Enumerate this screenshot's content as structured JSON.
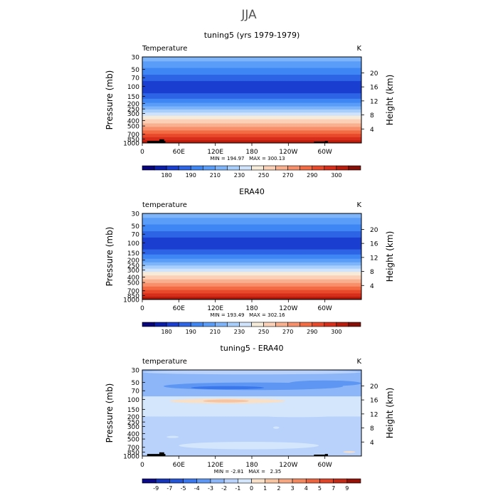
{
  "figure": {
    "title": "JJA"
  },
  "colors": {
    "abs_scale": [
      "#08047a",
      "#0a1ea8",
      "#1a3fd0",
      "#2d64e6",
      "#3f86f5",
      "#5a9df8",
      "#7eb4fa",
      "#a8cffc",
      "#cfe3fd",
      "#f6ead9",
      "#fbd0b6",
      "#f9b08f",
      "#f78f6a",
      "#f26b43",
      "#e8492a",
      "#d62e1a",
      "#b81c0c",
      "#861008"
    ],
    "diff_scale": [
      "#0b0a86",
      "#1535b6",
      "#2655d4",
      "#3a76ec",
      "#5d97f3",
      "#8cb6f8",
      "#b8d2fb",
      "#d3e6fb",
      "#f8dfc8",
      "#f7c4a2",
      "#f6a681",
      "#f2885f",
      "#ea6440",
      "#dd4529",
      "#c22a18",
      "#931106"
    ],
    "land": "#000000"
  },
  "chart_data": [
    {
      "type": "heatmap",
      "id": "panel-model",
      "title": "tuning5 (yrs 1979-1979)",
      "left_label": "Temperature",
      "right_label": "K",
      "ylabel": "Pressure (mb)",
      "y2label": "Height (km)",
      "x_ticks": [
        "0",
        "60E",
        "120E",
        "180",
        "120W",
        "60W"
      ],
      "x_tick_values": [
        0,
        60,
        120,
        180,
        240,
        300
      ],
      "xlim": [
        0,
        360
      ],
      "y_ticks": [
        "30",
        "50",
        "70",
        "100",
        "150",
        "200",
        "250",
        "300",
        "400",
        "500",
        "700",
        "850",
        "1000"
      ],
      "y_tick_values": [
        30,
        50,
        70,
        100,
        150,
        200,
        250,
        300,
        400,
        500,
        700,
        850,
        1000
      ],
      "ylim": [
        1000,
        30
      ],
      "y_scale": "log",
      "y2_ticks": [
        "20",
        "16",
        "12",
        "8",
        "4"
      ],
      "y2_tick_values": [
        20,
        16,
        12,
        8,
        4
      ],
      "stats": "MIN = 194.97   MAX = 300.13",
      "colorbar_labels": [
        "180",
        "190",
        "210",
        "230",
        "250",
        "270",
        "290",
        "300"
      ],
      "colorbar_label_after_box": [
        1,
        3,
        5,
        7,
        9,
        11,
        13,
        15
      ],
      "zonal_bands": [
        {
          "p_top": 30,
          "p_bot": 36,
          "color_index": 6
        },
        {
          "p_top": 36,
          "p_bot": 47,
          "color_index": 5
        },
        {
          "p_top": 47,
          "p_bot": 62,
          "color_index": 4
        },
        {
          "p_top": 62,
          "p_bot": 80,
          "color_index": 3
        },
        {
          "p_top": 80,
          "p_bot": 132,
          "color_index": 2
        },
        {
          "p_top": 132,
          "p_bot": 165,
          "color_index": 3
        },
        {
          "p_top": 165,
          "p_bot": 195,
          "color_index": 4
        },
        {
          "p_top": 195,
          "p_bot": 225,
          "color_index": 5
        },
        {
          "p_top": 225,
          "p_bot": 255,
          "color_index": 6
        },
        {
          "p_top": 255,
          "p_bot": 290,
          "color_index": 7
        },
        {
          "p_top": 290,
          "p_bot": 330,
          "color_index": 8
        },
        {
          "p_top": 330,
          "p_bot": 380,
          "color_index": 9
        },
        {
          "p_top": 380,
          "p_bot": 450,
          "color_index": 10
        },
        {
          "p_top": 450,
          "p_bot": 520,
          "color_index": 11
        },
        {
          "p_top": 520,
          "p_bot": 600,
          "color_index": 12
        },
        {
          "p_top": 600,
          "p_bot": 690,
          "color_index": 13
        },
        {
          "p_top": 690,
          "p_bot": 790,
          "color_index": 14
        },
        {
          "p_top": 790,
          "p_bot": 900,
          "color_index": 15
        },
        {
          "p_top": 900,
          "p_bot": 1000,
          "color_index": 16
        }
      ],
      "anomaly_blobs": [],
      "land": [
        {
          "lon0": 8,
          "lon1": 38,
          "p_top": 920
        },
        {
          "lon0": 28,
          "lon1": 36,
          "p_top": 860
        },
        {
          "lon0": 282,
          "lon1": 300,
          "p_top": 945
        },
        {
          "lon0": 300,
          "lon1": 305,
          "p_top": 920
        }
      ]
    },
    {
      "type": "heatmap",
      "id": "panel-obs",
      "title": "ERA40",
      "left_label": "temperature",
      "right_label": "K",
      "ylabel": "Pressure (mb)",
      "y2label": "Height (km)",
      "x_ticks": [
        "0",
        "60E",
        "120E",
        "180",
        "120W",
        "60W"
      ],
      "x_tick_values": [
        0,
        60,
        120,
        180,
        240,
        300
      ],
      "xlim": [
        0,
        360
      ],
      "y_ticks": [
        "30",
        "50",
        "70",
        "100",
        "150",
        "200",
        "250",
        "300",
        "400",
        "500",
        "700",
        "850",
        "1000"
      ],
      "y_tick_values": [
        30,
        50,
        70,
        100,
        150,
        200,
        250,
        300,
        400,
        500,
        700,
        850,
        1000
      ],
      "ylim": [
        1000,
        30
      ],
      "y_scale": "log",
      "y2_ticks": [
        "20",
        "16",
        "12",
        "8",
        "4"
      ],
      "y2_tick_values": [
        20,
        16,
        12,
        8,
        4
      ],
      "stats": "MIN = 193.49   MAX = 302.16",
      "colorbar_labels": [
        "180",
        "190",
        "210",
        "230",
        "250",
        "270",
        "290",
        "300"
      ],
      "colorbar_label_after_box": [
        1,
        3,
        5,
        7,
        9,
        11,
        13,
        15
      ],
      "zonal_bands": [
        {
          "p_top": 30,
          "p_bot": 36,
          "color_index": 6
        },
        {
          "p_top": 36,
          "p_bot": 47,
          "color_index": 5
        },
        {
          "p_top": 47,
          "p_bot": 62,
          "color_index": 4
        },
        {
          "p_top": 62,
          "p_bot": 80,
          "color_index": 3
        },
        {
          "p_top": 80,
          "p_bot": 130,
          "color_index": 2
        },
        {
          "p_top": 130,
          "p_bot": 160,
          "color_index": 3
        },
        {
          "p_top": 160,
          "p_bot": 190,
          "color_index": 4
        },
        {
          "p_top": 190,
          "p_bot": 220,
          "color_index": 5
        },
        {
          "p_top": 220,
          "p_bot": 250,
          "color_index": 6
        },
        {
          "p_top": 250,
          "p_bot": 285,
          "color_index": 7
        },
        {
          "p_top": 285,
          "p_bot": 325,
          "color_index": 8
        },
        {
          "p_top": 325,
          "p_bot": 375,
          "color_index": 9
        },
        {
          "p_top": 375,
          "p_bot": 440,
          "color_index": 10
        },
        {
          "p_top": 440,
          "p_bot": 510,
          "color_index": 11
        },
        {
          "p_top": 510,
          "p_bot": 590,
          "color_index": 12
        },
        {
          "p_top": 590,
          "p_bot": 680,
          "color_index": 13
        },
        {
          "p_top": 680,
          "p_bot": 780,
          "color_index": 14
        },
        {
          "p_top": 780,
          "p_bot": 890,
          "color_index": 15
        },
        {
          "p_top": 890,
          "p_bot": 960,
          "color_index": 16
        },
        {
          "p_top": 960,
          "p_bot": 1000,
          "color_index": 17
        }
      ],
      "anomaly_blobs": [],
      "land": []
    },
    {
      "type": "heatmap",
      "id": "panel-diff",
      "title": "tuning5 - ERA40",
      "left_label": "temperature",
      "right_label": "K",
      "ylabel": "Pressure (mb)",
      "y2label": "Height (km)",
      "x_ticks": [
        "0",
        "60E",
        "120E",
        "180",
        "120W",
        "60W"
      ],
      "x_tick_values": [
        0,
        60,
        120,
        180,
        240,
        300
      ],
      "xlim": [
        0,
        360
      ],
      "y_ticks": [
        "30",
        "50",
        "70",
        "100",
        "150",
        "200",
        "250",
        "300",
        "400",
        "500",
        "700",
        "850",
        "1000"
      ],
      "y_tick_values": [
        30,
        50,
        70,
        100,
        150,
        200,
        250,
        300,
        400,
        500,
        700,
        850,
        1000
      ],
      "ylim": [
        1000,
        30
      ],
      "y_scale": "log",
      "y2_ticks": [
        "20",
        "16",
        "12",
        "8",
        "4"
      ],
      "y2_tick_values": [
        20,
        16,
        12,
        8,
        4
      ],
      "stats": "MIN = -2.81   MAX =   2.35",
      "colorbar_labels": [
        "-9",
        "-7",
        "-5",
        "-4",
        "-3",
        "-2",
        "-1",
        "0",
        "1",
        "2",
        "3",
        "4",
        "5",
        "7",
        "9"
      ],
      "colorbar_label_after_box": [
        0,
        1,
        2,
        3,
        4,
        5,
        6,
        7,
        8,
        9,
        10,
        11,
        12,
        13,
        14
      ],
      "zonal_bands": [
        {
          "p_top": 30,
          "p_bot": 38,
          "color_index": 5
        },
        {
          "p_top": 38,
          "p_bot": 88,
          "color_index": 5
        },
        {
          "p_top": 88,
          "p_bot": 200,
          "color_index": 7
        },
        {
          "p_top": 200,
          "p_bot": 1000,
          "color_index": 6
        }
      ],
      "anomaly_blobs": [
        {
          "lon0": 35,
          "lon1": 330,
          "p_top": 50,
          "p_bot": 68,
          "color_index": 4
        },
        {
          "lon0": 80,
          "lon1": 200,
          "p_top": 58,
          "p_bot": 66,
          "color_index": 3
        },
        {
          "lon0": 240,
          "lon1": 360,
          "p_top": 46,
          "p_bot": 58,
          "color_index": 4
        },
        {
          "lon0": 0,
          "lon1": 360,
          "p_top": 30,
          "p_bot": 36,
          "color_index": 6
        },
        {
          "lon0": 45,
          "lon1": 235,
          "p_top": 96,
          "p_bot": 118,
          "color_index": 8
        },
        {
          "lon0": 100,
          "lon1": 175,
          "p_top": 100,
          "p_bot": 113,
          "color_index": 9
        },
        {
          "lon0": 0,
          "lon1": 80,
          "p_top": 135,
          "p_bot": 200,
          "color_index": 7
        },
        {
          "lon0": 150,
          "lon1": 360,
          "p_top": 145,
          "p_bot": 205,
          "color_index": 7
        },
        {
          "lon0": 320,
          "lon1": 360,
          "p_top": 105,
          "p_bot": 160,
          "color_index": 7
        },
        {
          "lon0": 60,
          "lon1": 290,
          "p_top": 560,
          "p_bot": 760,
          "color_index": 7
        },
        {
          "lon0": 215,
          "lon1": 225,
          "p_top": 300,
          "p_bot": 330,
          "color_index": 7
        },
        {
          "lon0": 330,
          "lon1": 350,
          "p_top": 820,
          "p_bot": 880,
          "color_index": 8
        },
        {
          "lon0": 40,
          "lon1": 60,
          "p_top": 440,
          "p_bot": 480,
          "color_index": 7
        }
      ],
      "land": [
        {
          "lon0": 8,
          "lon1": 38,
          "p_top": 920
        },
        {
          "lon0": 28,
          "lon1": 36,
          "p_top": 860
        },
        {
          "lon0": 282,
          "lon1": 300,
          "p_top": 945
        },
        {
          "lon0": 300,
          "lon1": 305,
          "p_top": 920
        }
      ]
    }
  ]
}
